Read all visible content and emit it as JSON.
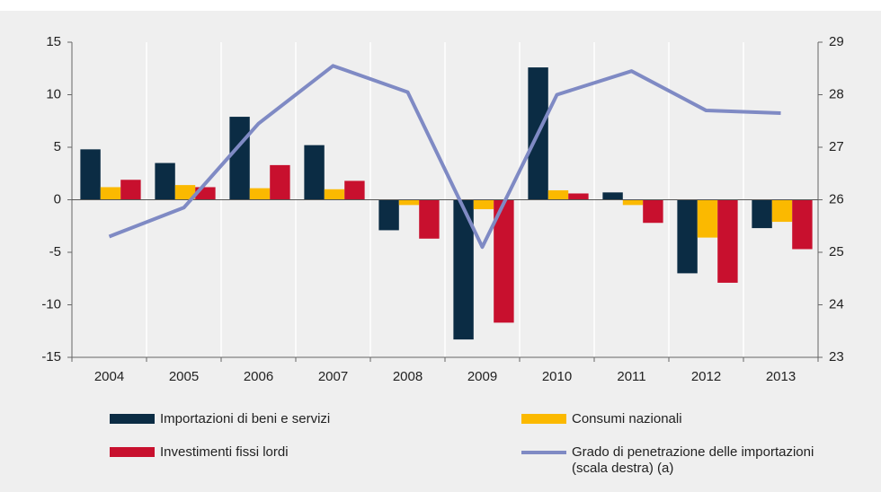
{
  "chart_data": {
    "type": "bar",
    "categories": [
      "2004",
      "2005",
      "2006",
      "2007",
      "2008",
      "2009",
      "2010",
      "2011",
      "2012",
      "2013"
    ],
    "series": [
      {
        "name": "Importazioni di beni e servizi",
        "color": "#0b2c44",
        "values": [
          4.8,
          3.5,
          7.9,
          5.2,
          -2.9,
          -13.3,
          12.6,
          0.7,
          -7.0,
          -2.7
        ]
      },
      {
        "name": "Consumi nazionali",
        "color": "#fbb900",
        "values": [
          1.2,
          1.4,
          1.1,
          1.0,
          -0.5,
          -0.9,
          0.9,
          -0.5,
          -3.6,
          -2.1
        ]
      },
      {
        "name": "Investimenti fissi lordi",
        "color": "#c8102e",
        "values": [
          1.9,
          1.2,
          3.3,
          1.8,
          -3.7,
          -11.7,
          0.6,
          -2.2,
          -7.9,
          -4.7
        ]
      },
      {
        "name": "Grado di penetrazione delle importazioni (scala destra) (a)",
        "color": "#7f8ac4",
        "type": "line",
        "axis": "y2",
        "values": [
          25.3,
          25.85,
          27.45,
          28.55,
          28.05,
          25.1,
          28.0,
          28.45,
          27.7,
          27.65
        ]
      }
    ],
    "ylim": [
      -15,
      15
    ],
    "yticks": [
      -15,
      -10,
      -5,
      0,
      5,
      10,
      15
    ],
    "y2lim": [
      23,
      29
    ],
    "y2ticks": [
      23,
      24,
      25,
      26,
      27,
      28,
      29
    ]
  }
}
